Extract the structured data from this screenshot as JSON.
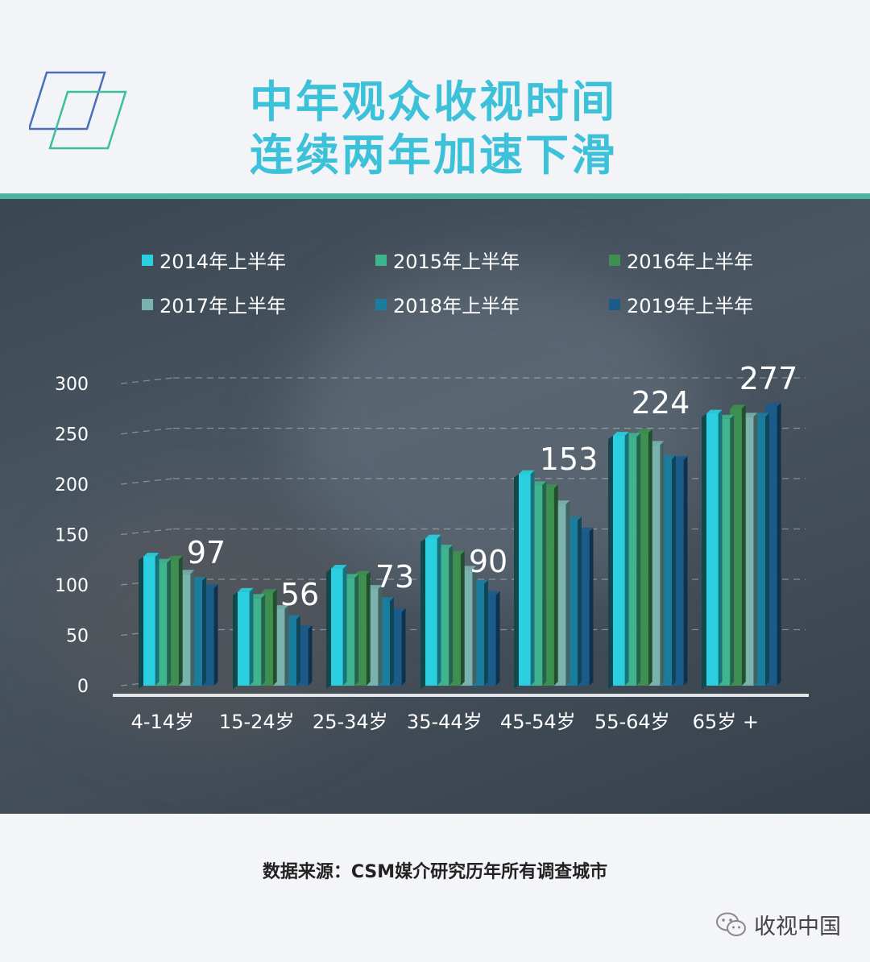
{
  "header": {
    "title_line1": "中年观众收视时间",
    "title_line2": "连续两年加速下滑"
  },
  "colors": {
    "title": "#3cc1d9",
    "divider": "#4db39e",
    "series": [
      "#2ad0e0",
      "#3fb48f",
      "#3e8f50",
      "#7ab3ae",
      "#1a7d9e",
      "#1a5b8a"
    ]
  },
  "chart_data": {
    "type": "bar",
    "categories": [
      "4-14岁",
      "15-24岁",
      "25-34岁",
      "35-44岁",
      "45-54岁",
      "55-64岁",
      "65岁 +"
    ],
    "series": [
      {
        "name": "2014年上半年",
        "values": [
          128,
          93,
          116,
          146,
          210,
          248,
          270
        ]
      },
      {
        "name": "2015年上半年",
        "values": [
          122,
          87,
          107,
          136,
          199,
          247,
          265
        ]
      },
      {
        "name": "2016年上半年",
        "values": [
          125,
          92,
          110,
          130,
          196,
          251,
          275
        ]
      },
      {
        "name": "2017年上半年",
        "values": [
          111,
          76,
          96,
          115,
          180,
          239,
          267
        ]
      },
      {
        "name": "2018年上半年",
        "values": [
          104,
          66,
          84,
          101,
          164,
          225,
          267
        ]
      },
      {
        "name": "2019年上半年",
        "values": [
          97,
          56,
          73,
          90,
          153,
          224,
          277
        ]
      }
    ],
    "data_labels": [
      "97",
      "56",
      "73",
      "90",
      "153",
      "224",
      "277"
    ],
    "y_ticks": [
      "0",
      "50",
      "100",
      "150",
      "200",
      "250",
      "300"
    ],
    "ylim": [
      0,
      300
    ],
    "grid": true,
    "legend": "top",
    "title": "",
    "xlabel": "",
    "ylabel": ""
  },
  "footer": {
    "source": "数据来源：CSM媒介研究历年所有调查城市",
    "brand": "收视中国"
  }
}
